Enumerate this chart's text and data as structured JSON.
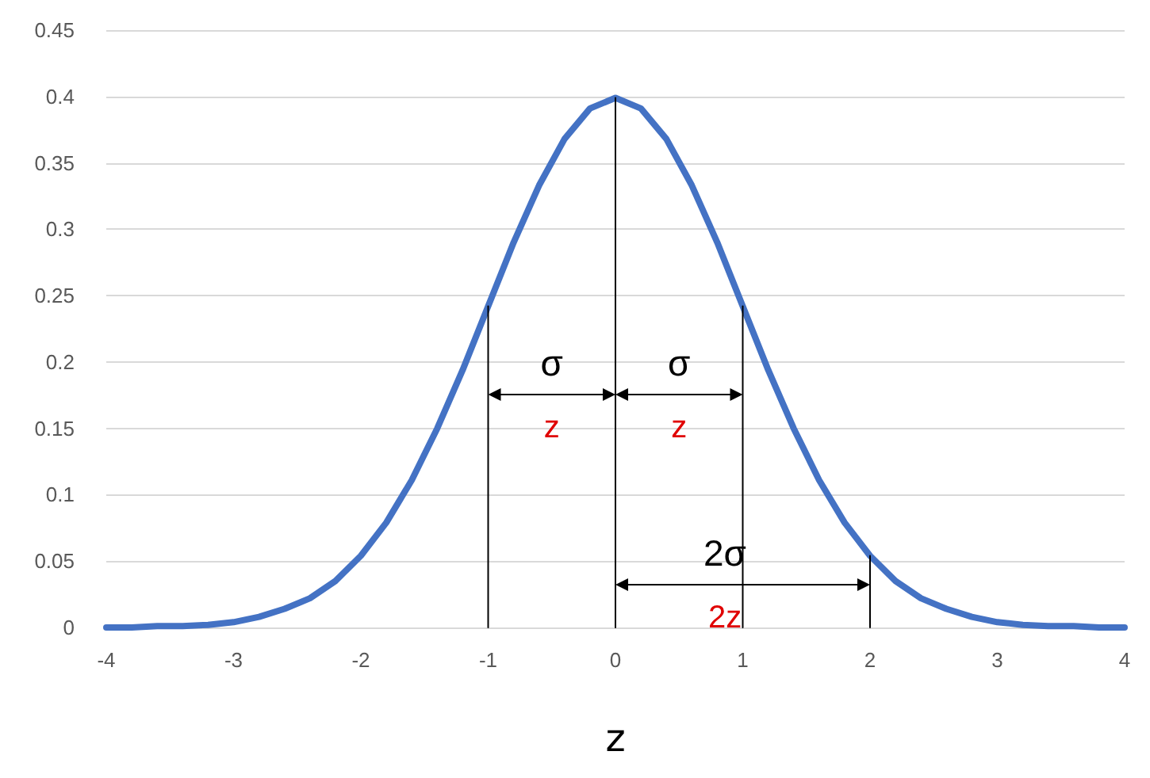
{
  "chart_data": {
    "type": "line",
    "xlabel": "z",
    "grid": "y",
    "marker": "none",
    "line_style": "solid",
    "xlim": [
      -4,
      4
    ],
    "xticks": [
      -4,
      -3,
      -2,
      -1,
      0,
      1,
      2,
      3,
      4
    ],
    "ylim": [
      0,
      0.45
    ],
    "yticks": [
      0,
      0.05,
      0.1,
      0.15,
      0.2,
      0.25,
      0.3,
      0.35,
      0.4,
      0.45
    ],
    "series": [
      {
        "color": "#4472c4",
        "x": [
          -4,
          -3.8,
          -3.6,
          -3.4,
          -3.2,
          -3,
          -2.8,
          -2.6,
          -2.4,
          -2.2,
          -2,
          -1.8,
          -1.6,
          -1.4,
          -1.2,
          -1,
          -0.8,
          -0.6,
          -0.4,
          -0.2,
          0,
          0.2,
          0.4,
          0.6,
          0.8,
          1,
          1.2,
          1.4,
          1.6,
          1.8,
          2,
          2.2,
          2.4,
          2.6,
          2.8,
          3,
          3.2,
          3.4,
          3.6,
          3.8,
          4
        ],
        "values": [
          0,
          0,
          0.001,
          0.001,
          0.002,
          0.004,
          0.008,
          0.014,
          0.022,
          0.035,
          0.054,
          0.079,
          0.111,
          0.15,
          0.194,
          0.242,
          0.29,
          0.333,
          0.368,
          0.391,
          0.399,
          0.391,
          0.368,
          0.333,
          0.29,
          0.242,
          0.194,
          0.15,
          0.111,
          0.079,
          0.054,
          0.035,
          0.022,
          0.014,
          0.008,
          0.004,
          0.002,
          0.001,
          0.001,
          0,
          0
        ]
      },
      {
        "color": "#000000",
        "x": [
          -1,
          -1
        ],
        "values": [
          0,
          0.242
        ]
      },
      {
        "color": "#000000",
        "x": [
          0,
          0
        ],
        "values": [
          0,
          0.399
        ]
      },
      {
        "color": "#000000",
        "x": [
          1,
          1
        ],
        "values": [
          0,
          0.242
        ]
      },
      {
        "color": "#000000",
        "x": [
          2,
          2
        ],
        "values": [
          0,
          0.054
        ]
      }
    ],
    "annotations": [
      "σ",
      "z",
      "σ",
      "z",
      "2σ",
      "2z"
    ]
  }
}
